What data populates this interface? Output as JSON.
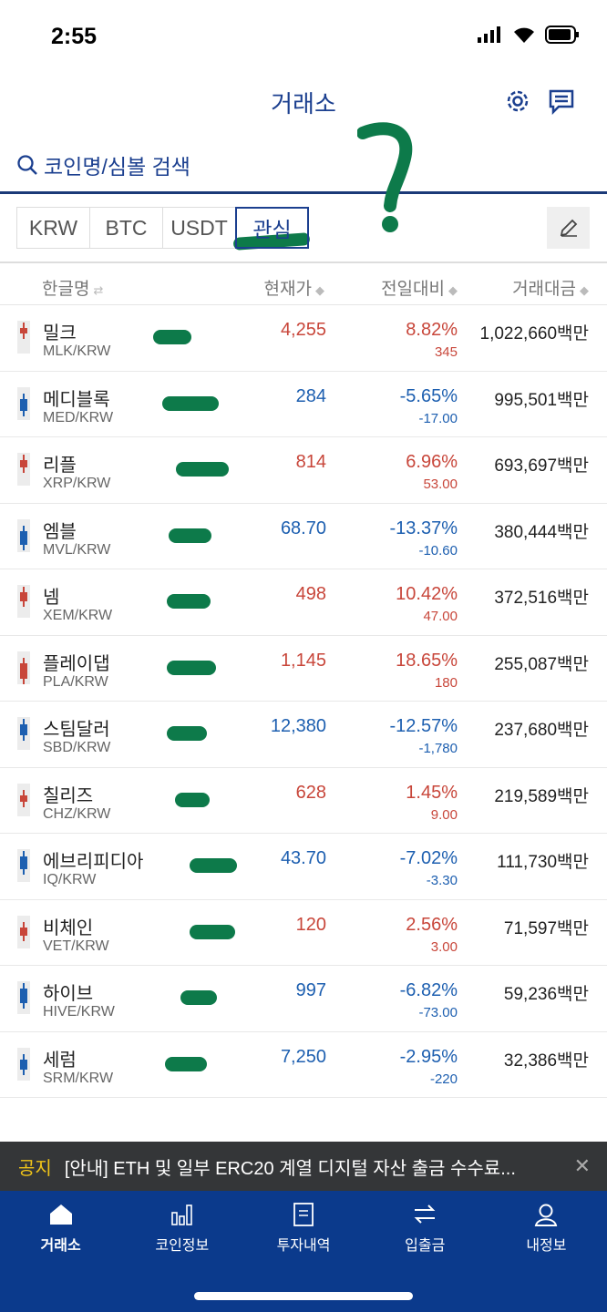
{
  "status_bar": {
    "time": "2:55"
  },
  "header": {
    "title": "거래소",
    "search_placeholder": "코인명/심볼 검색"
  },
  "tabs": [
    {
      "label": "KRW",
      "active": false
    },
    {
      "label": "BTC",
      "active": false
    },
    {
      "label": "USDT",
      "active": false
    },
    {
      "label": "관심",
      "active": true
    }
  ],
  "columns": {
    "name": "한글명",
    "price": "현재가",
    "change": "전일대비",
    "volume": "거래대금"
  },
  "colors": {
    "up": "#c8463a",
    "down": "#1d5fb0",
    "brand": "#0b3a8c",
    "annotation": "#0d7a4a"
  },
  "rows": [
    {
      "name": "밀크",
      "symbol": "MLK/KRW",
      "price": "4,255",
      "pct": "8.82%",
      "chg": "345",
      "volume": "1,022,660백만",
      "dir": "up"
    },
    {
      "name": "메디블록",
      "symbol": "MED/KRW",
      "price": "284",
      "pct": "-5.65%",
      "chg": "-17.00",
      "volume": "995,501백만",
      "dir": "down"
    },
    {
      "name": "리플",
      "symbol": "XRP/KRW",
      "price": "814",
      "pct": "6.96%",
      "chg": "53.00",
      "volume": "693,697백만",
      "dir": "up"
    },
    {
      "name": "엠블",
      "symbol": "MVL/KRW",
      "price": "68.70",
      "pct": "-13.37%",
      "chg": "-10.60",
      "volume": "380,444백만",
      "dir": "down"
    },
    {
      "name": "넴",
      "symbol": "XEM/KRW",
      "price": "498",
      "pct": "10.42%",
      "chg": "47.00",
      "volume": "372,516백만",
      "dir": "up"
    },
    {
      "name": "플레이댑",
      "symbol": "PLA/KRW",
      "price": "1,145",
      "pct": "18.65%",
      "chg": "180",
      "volume": "255,087백만",
      "dir": "up"
    },
    {
      "name": "스팀달러",
      "symbol": "SBD/KRW",
      "price": "12,380",
      "pct": "-12.57%",
      "chg": "-1,780",
      "volume": "237,680백만",
      "dir": "down"
    },
    {
      "name": "칠리즈",
      "symbol": "CHZ/KRW",
      "price": "628",
      "pct": "1.45%",
      "chg": "9.00",
      "volume": "219,589백만",
      "dir": "up"
    },
    {
      "name": "에브리피디아",
      "symbol": "IQ/KRW",
      "price": "43.70",
      "pct": "-7.02%",
      "chg": "-3.30",
      "volume": "111,730백만",
      "dir": "down"
    },
    {
      "name": "비체인",
      "symbol": "VET/KRW",
      "price": "120",
      "pct": "2.56%",
      "chg": "3.00",
      "volume": "71,597백만",
      "dir": "up"
    },
    {
      "name": "하이브",
      "symbol": "HIVE/KRW",
      "price": "997",
      "pct": "-6.82%",
      "chg": "-73.00",
      "volume": "59,236백만",
      "dir": "down"
    },
    {
      "name": "세럼",
      "symbol": "SRM/KRW",
      "price": "7,250",
      "pct": "-2.95%",
      "chg": "-220",
      "volume": "32,386백만",
      "dir": "down"
    }
  ],
  "notice": {
    "label": "공지",
    "text": "[안내] ETH 및 일부 ERC20 계열 디지털 자산 출금 수수료..."
  },
  "bottom_nav": [
    {
      "label": "거래소",
      "icon": "home-icon",
      "active": true
    },
    {
      "label": "코인정보",
      "icon": "bar-chart-icon"
    },
    {
      "label": "투자내역",
      "icon": "document-icon"
    },
    {
      "label": "입출금",
      "icon": "transfer-icon"
    },
    {
      "label": "내정보",
      "icon": "user-icon"
    }
  ]
}
